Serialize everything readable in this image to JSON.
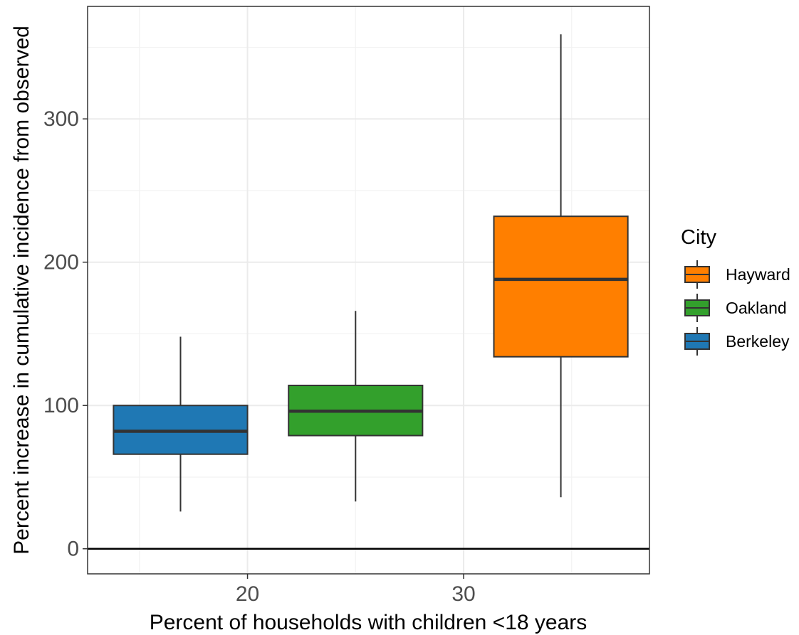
{
  "chart_data": {
    "type": "boxplot",
    "title": "",
    "xlabel": "Percent of households with children <18 years",
    "ylabel": "Percent increase in cumulative incidence from observed",
    "xlim": [
      12.6,
      38.6
    ],
    "ylim": [
      -17.5,
      378.5
    ],
    "x_ticks": [
      20,
      30
    ],
    "x_tick_labels": [
      "20",
      "30"
    ],
    "y_ticks": [
      0,
      100,
      200,
      300
    ],
    "y_tick_labels": [
      "0",
      "100",
      "200",
      "300"
    ],
    "reference_line_y": 0,
    "grid": true,
    "legend": {
      "title": "City",
      "placement": "right",
      "entries": [
        "Hayward",
        "Oakland",
        "Berkeley"
      ]
    },
    "series": [
      {
        "name": "Berkeley",
        "color": "#1f78b4",
        "x_center": 16.9,
        "x_width": 6.2,
        "whisker_low": 26,
        "q1": 66,
        "median": 82,
        "q3": 100,
        "whisker_high": 148
      },
      {
        "name": "Oakland",
        "color": "#33a02c",
        "x_center": 25.0,
        "x_width": 6.2,
        "whisker_low": 33,
        "q1": 79,
        "median": 96,
        "q3": 114,
        "whisker_high": 166
      },
      {
        "name": "Hayward",
        "color": "#ff7f00",
        "x_center": 34.5,
        "x_width": 6.2,
        "whisker_low": 36,
        "q1": 134,
        "median": 188,
        "q3": 232,
        "whisker_high": 359
      }
    ]
  }
}
